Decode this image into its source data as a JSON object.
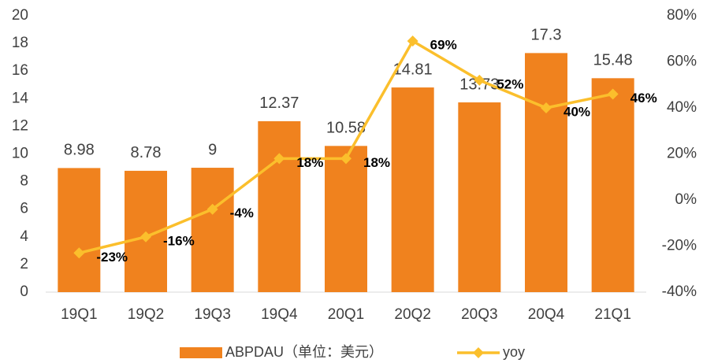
{
  "chart_data": {
    "type": "bar_line",
    "categories": [
      "19Q1",
      "19Q2",
      "19Q3",
      "19Q4",
      "20Q1",
      "20Q2",
      "20Q3",
      "20Q4",
      "21Q1"
    ],
    "series": [
      {
        "name": "ABPDAU（单位：美元）",
        "color": "#f0821e",
        "type": "bar",
        "values": [
          8.98,
          8.78,
          9,
          12.37,
          10.58,
          14.81,
          13.73,
          17.3,
          15.48
        ]
      },
      {
        "name": "yoy",
        "color": "#fbbf2c",
        "type": "line",
        "axis": "y2",
        "values": [
          -23,
          -16,
          -4,
          18,
          18,
          69,
          52,
          40,
          46
        ],
        "value_labels": [
          "-23%",
          "-16%",
          "-4%",
          "18%",
          "18%",
          "69%",
          "52%",
          "40%",
          "46%"
        ]
      }
    ],
    "ylim": [
      0,
      20
    ],
    "yticks": [
      0,
      2,
      4,
      6,
      8,
      10,
      12,
      14,
      16,
      18,
      20
    ],
    "y2lim": [
      -40,
      80
    ],
    "y2ticks": [
      {
        "value": -40,
        "label": "-40%"
      },
      {
        "value": -20,
        "label": "-20%"
      },
      {
        "value": 0,
        "label": "0%"
      },
      {
        "value": 20,
        "label": "20%"
      },
      {
        "value": 40,
        "label": "40%"
      },
      {
        "value": 60,
        "label": "60%"
      },
      {
        "value": 80,
        "label": "80%"
      }
    ],
    "grid": false,
    "legend": "bottom"
  }
}
